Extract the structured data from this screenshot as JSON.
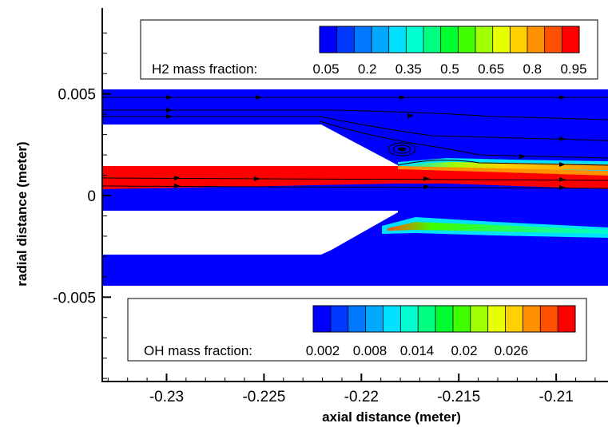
{
  "chart_data": {
    "type": "heatmap",
    "title": "",
    "xlabel": "axial distance (meter)",
    "ylabel": "radial distance (meter)",
    "xlim": [
      -0.2333,
      -0.2073
    ],
    "ylim": [
      -0.00915,
      0.00915
    ],
    "x_ticks": [
      {
        "value": -0.23,
        "label": "-0.23"
      },
      {
        "value": -0.225,
        "label": "-0.225"
      },
      {
        "value": -0.22,
        "label": "-0.22"
      },
      {
        "value": -0.215,
        "label": "-0.215"
      },
      {
        "value": -0.21,
        "label": "-0.21"
      }
    ],
    "y_ticks": [
      {
        "value": 0.005,
        "label": "0.005"
      },
      {
        "value": 0,
        "label": "0"
      },
      {
        "value": -0.005,
        "label": "-0.005"
      }
    ],
    "grid": false,
    "legends": [
      {
        "title": "H2 mass fraction:",
        "placement": "top",
        "tick_labels": [
          "0.05",
          "0.2",
          "0.35",
          "0.5",
          "0.65",
          "0.8",
          "0.95"
        ],
        "colors": [
          "#0000ff",
          "#0038ff",
          "#0078ff",
          "#00a8ff",
          "#00e0ff",
          "#00ffd0",
          "#00ff80",
          "#00ff30",
          "#40ff00",
          "#a0ff00",
          "#e8ff00",
          "#ffd000",
          "#ff9000",
          "#ff5000",
          "#ff0000"
        ]
      },
      {
        "title": "OH mass fraction:",
        "placement": "bottom",
        "tick_labels": [
          "0.002",
          "0.008",
          "0.014",
          "0.02",
          "0.026"
        ],
        "colors": [
          "#0000ff",
          "#0038ff",
          "#0078ff",
          "#00a8ff",
          "#00e0ff",
          "#00ffd0",
          "#00ff80",
          "#00ff30",
          "#40ff00",
          "#a0ff00",
          "#e8ff00",
          "#ffd000",
          "#ff9000",
          "#ff5000",
          "#ff0000"
        ]
      }
    ]
  },
  "colors": {
    "background_field": "#0000ff",
    "hydrogen_core": "#ff0000",
    "wall": "#ffffff",
    "streamline": "#000000"
  }
}
